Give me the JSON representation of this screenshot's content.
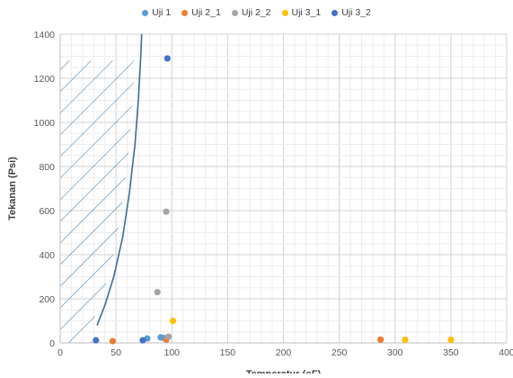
{
  "chart_data": {
    "type": "scatter",
    "title": "",
    "xlabel": "Temperatur (oF)",
    "ylabel": "Tekanan (Psi)",
    "xlim": [
      0,
      400
    ],
    "ylim": [
      0,
      1400
    ],
    "x_ticks": [
      "0",
      "50",
      "100",
      "150",
      "200",
      "250",
      "300",
      "350",
      "400"
    ],
    "y_ticks": [
      "0",
      "200",
      "400",
      "600",
      "800",
      "1000",
      "1200",
      "1400"
    ],
    "grid": true,
    "legend_position": "top",
    "series": [
      {
        "name": "Uji 1",
        "color": "#5B9BD5",
        "points": [
          [
            78,
            20
          ],
          [
            90,
            25
          ],
          [
            93,
            22
          ]
        ]
      },
      {
        "name": "Uji 2_1",
        "color": "#ED7D31",
        "points": [
          [
            47,
            8
          ],
          [
            95,
            15
          ],
          [
            287,
            15
          ]
        ]
      },
      {
        "name": "Uji 2_2",
        "color": "#A5A5A5",
        "points": [
          [
            87,
            230
          ],
          [
            95,
            595
          ],
          [
            97,
            28
          ]
        ]
      },
      {
        "name": "Uji 3_1",
        "color": "#FFC000",
        "points": [
          [
            101,
            100
          ],
          [
            309,
            14
          ],
          [
            350,
            14
          ]
        ]
      },
      {
        "name": "Uji 3_2",
        "color": "#4472C4",
        "points": [
          [
            32,
            12
          ],
          [
            74,
            12
          ],
          [
            96,
            1290
          ]
        ]
      }
    ],
    "hydrate_curve": {
      "color": "#3A6D9A",
      "points": [
        [
          33,
          80
        ],
        [
          40,
          170
        ],
        [
          48,
          300
        ],
        [
          56,
          480
        ],
        [
          62,
          680
        ],
        [
          67,
          900
        ],
        [
          70,
          1100
        ],
        [
          72,
          1280
        ],
        [
          73,
          1400
        ]
      ]
    }
  }
}
